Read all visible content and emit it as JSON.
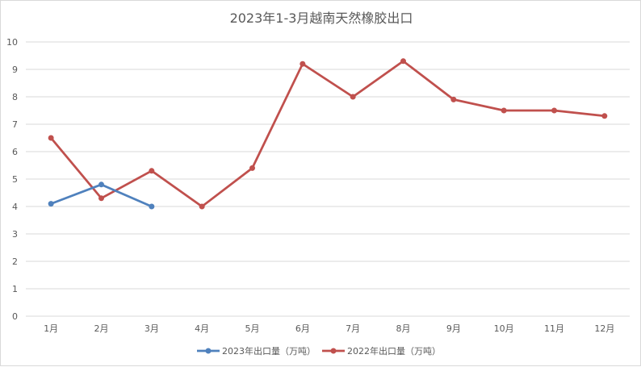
{
  "chart_data": {
    "type": "line",
    "title": "2023年1-3月越南天然橡胶出口",
    "xlabel": "",
    "ylabel": "",
    "categories": [
      "1月",
      "2月",
      "3月",
      "4月",
      "5月",
      "6月",
      "7月",
      "8月",
      "9月",
      "10月",
      "11月",
      "12月"
    ],
    "ylim": [
      0,
      10
    ],
    "yticks": [
      0,
      1,
      2,
      3,
      4,
      5,
      6,
      7,
      8,
      9,
      10
    ],
    "grid": true,
    "legend_position": "bottom",
    "series": [
      {
        "name": "2023年出口量（万吨）",
        "color": "#4f81bd",
        "values": [
          4.1,
          4.8,
          4.0,
          null,
          null,
          null,
          null,
          null,
          null,
          null,
          null,
          null
        ]
      },
      {
        "name": "2022年出口量（万吨）",
        "color": "#c0504d",
        "values": [
          6.5,
          4.3,
          5.3,
          4.0,
          5.4,
          9.2,
          8.0,
          9.3,
          7.9,
          7.5,
          7.5,
          7.3
        ]
      }
    ]
  }
}
